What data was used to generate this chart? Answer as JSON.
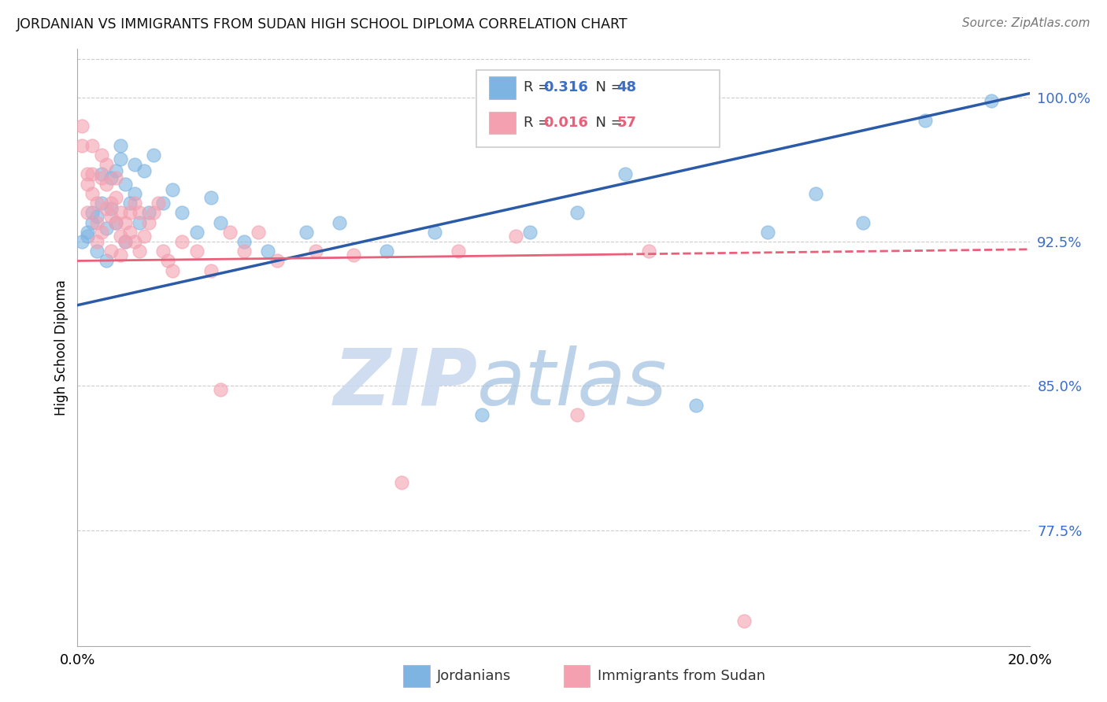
{
  "title": "JORDANIAN VS IMMIGRANTS FROM SUDAN HIGH SCHOOL DIPLOMA CORRELATION CHART",
  "source": "Source: ZipAtlas.com",
  "ylabel": "High School Diploma",
  "xlim": [
    0.0,
    0.2
  ],
  "ylim": [
    0.715,
    1.025
  ],
  "yticks": [
    0.775,
    0.85,
    0.925,
    1.0
  ],
  "ytick_labels": [
    "77.5%",
    "85.0%",
    "92.5%",
    "100.0%"
  ],
  "xticks": [
    0.0,
    0.05,
    0.1,
    0.15,
    0.2
  ],
  "xtick_labels": [
    "0.0%",
    "",
    "",
    "",
    "20.0%"
  ],
  "watermark_zip": "ZIP",
  "watermark_atlas": "atlas",
  "blue_color": "#7EB4E2",
  "pink_color": "#F4A0B0",
  "line_blue": "#2B5BA8",
  "line_pink": "#E8607A",
  "jordanians_x": [
    0.001,
    0.002,
    0.002,
    0.003,
    0.003,
    0.004,
    0.004,
    0.005,
    0.005,
    0.006,
    0.006,
    0.007,
    0.007,
    0.008,
    0.008,
    0.009,
    0.009,
    0.01,
    0.01,
    0.011,
    0.012,
    0.012,
    0.013,
    0.014,
    0.015,
    0.016,
    0.018,
    0.02,
    0.022,
    0.025,
    0.028,
    0.03,
    0.035,
    0.04,
    0.048,
    0.055,
    0.065,
    0.075,
    0.085,
    0.095,
    0.105,
    0.115,
    0.13,
    0.145,
    0.155,
    0.165,
    0.178,
    0.192
  ],
  "jordanians_y": [
    0.925,
    0.93,
    0.928,
    0.935,
    0.94,
    0.92,
    0.938,
    0.945,
    0.96,
    0.915,
    0.932,
    0.958,
    0.942,
    0.935,
    0.962,
    0.968,
    0.975,
    0.955,
    0.925,
    0.945,
    0.965,
    0.95,
    0.935,
    0.962,
    0.94,
    0.97,
    0.945,
    0.952,
    0.94,
    0.93,
    0.948,
    0.935,
    0.925,
    0.92,
    0.93,
    0.935,
    0.92,
    0.93,
    0.835,
    0.93,
    0.94,
    0.96,
    0.84,
    0.93,
    0.95,
    0.935,
    0.988,
    0.998
  ],
  "sudan_x": [
    0.001,
    0.001,
    0.002,
    0.002,
    0.002,
    0.003,
    0.003,
    0.003,
    0.004,
    0.004,
    0.004,
    0.005,
    0.005,
    0.005,
    0.006,
    0.006,
    0.006,
    0.007,
    0.007,
    0.007,
    0.008,
    0.008,
    0.008,
    0.009,
    0.009,
    0.009,
    0.01,
    0.01,
    0.011,
    0.011,
    0.012,
    0.012,
    0.013,
    0.013,
    0.014,
    0.015,
    0.016,
    0.017,
    0.018,
    0.019,
    0.02,
    0.022,
    0.025,
    0.028,
    0.03,
    0.032,
    0.035,
    0.038,
    0.042,
    0.05,
    0.058,
    0.068,
    0.08,
    0.092,
    0.105,
    0.12,
    0.14
  ],
  "sudan_y": [
    0.985,
    0.975,
    0.96,
    0.955,
    0.94,
    0.975,
    0.96,
    0.95,
    0.935,
    0.925,
    0.945,
    0.97,
    0.958,
    0.93,
    0.965,
    0.955,
    0.942,
    0.945,
    0.938,
    0.92,
    0.958,
    0.948,
    0.935,
    0.94,
    0.928,
    0.918,
    0.935,
    0.925,
    0.94,
    0.93,
    0.945,
    0.925,
    0.94,
    0.92,
    0.928,
    0.935,
    0.94,
    0.945,
    0.92,
    0.915,
    0.91,
    0.925,
    0.92,
    0.91,
    0.848,
    0.93,
    0.92,
    0.93,
    0.915,
    0.92,
    0.918,
    0.8,
    0.92,
    0.928,
    0.835,
    0.92,
    0.728
  ]
}
